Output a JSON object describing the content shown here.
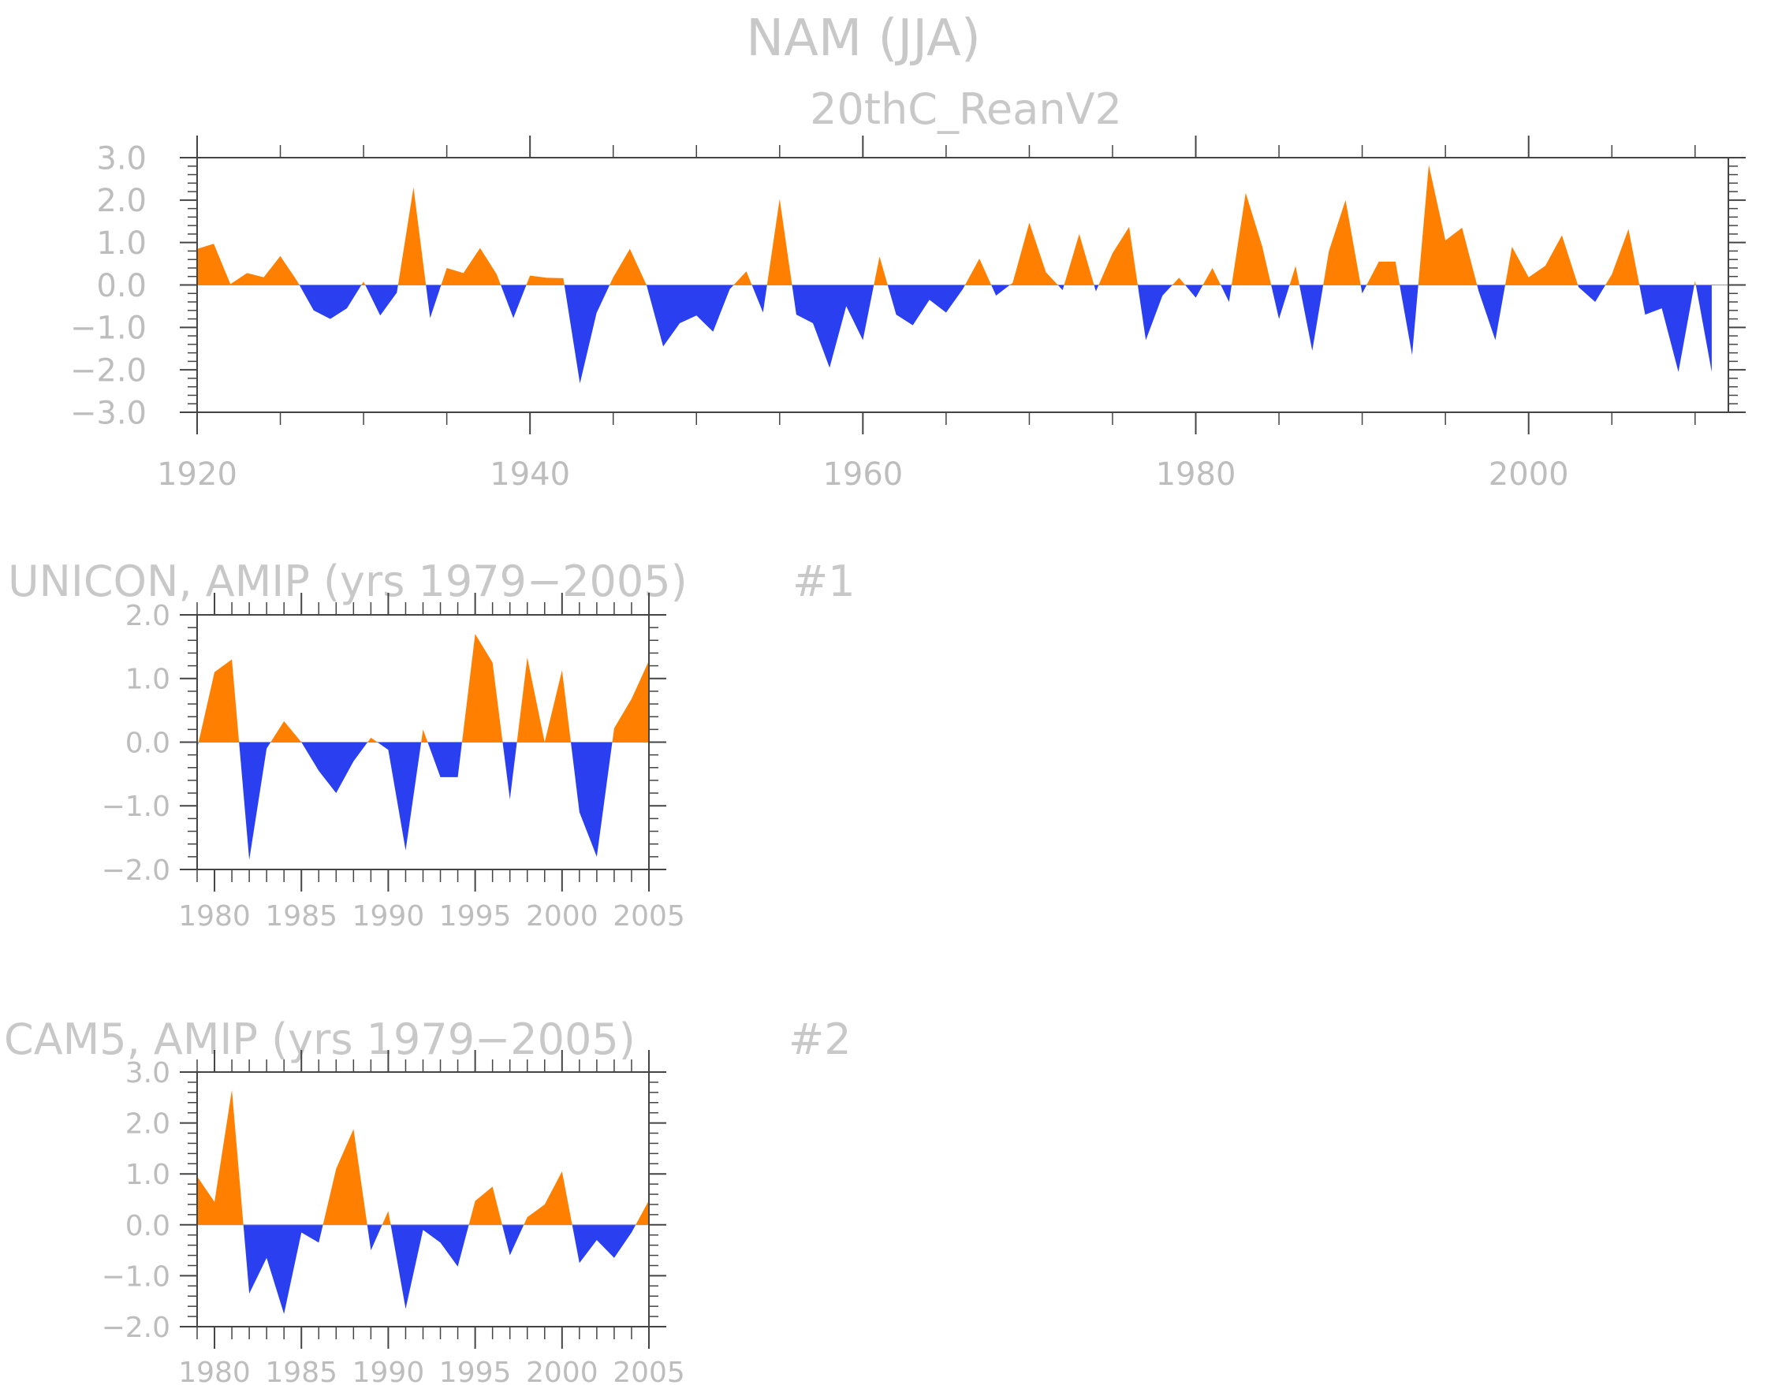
{
  "figure": {
    "title": "NAM (JJA)"
  },
  "chart_data": [
    {
      "type": "area",
      "title": "20thC_ReanV2",
      "tag": "",
      "xlabel": "",
      "ylabel": "",
      "xlim": [
        1920,
        2012
      ],
      "ylim": [
        -3,
        3
      ],
      "x_tick_labels": [
        "1920",
        "1940",
        "1960",
        "1980",
        "2000"
      ],
      "y_tick_labels": [
        "3.0",
        "2.0",
        "1.0",
        "0.0",
        "−1.0",
        "−2.0",
        "−3.0"
      ],
      "colors": {
        "positive": "#ff8000",
        "negative": "#2a3ff0"
      },
      "x": [
        1920,
        1921,
        1922,
        1923,
        1924,
        1925,
        1926,
        1927,
        1928,
        1929,
        1930,
        1931,
        1932,
        1933,
        1934,
        1935,
        1936,
        1937,
        1938,
        1939,
        1940,
        1941,
        1942,
        1943,
        1944,
        1945,
        1946,
        1947,
        1948,
        1949,
        1950,
        1951,
        1952,
        1953,
        1954,
        1955,
        1956,
        1957,
        1958,
        1959,
        1960,
        1961,
        1962,
        1963,
        1964,
        1965,
        1966,
        1967,
        1968,
        1969,
        1970,
        1971,
        1972,
        1973,
        1974,
        1975,
        1976,
        1977,
        1978,
        1979,
        1980,
        1981,
        1982,
        1983,
        1984,
        1985,
        1986,
        1987,
        1988,
        1989,
        1990,
        1991,
        1992,
        1993,
        1994,
        1995,
        1996,
        1997,
        1998,
        1999,
        2000,
        2001,
        2002,
        2003,
        2004,
        2005,
        2006,
        2007,
        2008,
        2009,
        2010,
        2011,
        2012
      ],
      "values": [
        0.85,
        0.97,
        0.02,
        0.28,
        0.18,
        0.68,
        0.1,
        -0.6,
        -0.8,
        -0.55,
        0.08,
        -0.72,
        -0.18,
        2.3,
        -0.78,
        0.4,
        0.28,
        0.87,
        0.25,
        -0.78,
        0.22,
        0.17,
        0.16,
        -2.32,
        -0.66,
        0.18,
        0.85,
        0.0,
        -1.45,
        -0.9,
        -0.72,
        -1.1,
        -0.1,
        0.32,
        -0.65,
        2.03,
        -0.7,
        -0.9,
        -1.95,
        -0.5,
        -1.3,
        0.67,
        -0.7,
        -0.95,
        -0.35,
        -0.65,
        -0.1,
        0.62,
        -0.25,
        0.05,
        1.47,
        0.3,
        -0.12,
        1.2,
        -0.15,
        0.75,
        1.37,
        -1.3,
        -0.25,
        0.17,
        -0.3,
        0.4,
        -0.4,
        2.17,
        0.9,
        -0.8,
        0.45,
        -1.55,
        0.8,
        2.0,
        -0.2,
        0.55,
        0.55,
        -1.65,
        2.83,
        1.05,
        1.35,
        -0.15,
        -1.3,
        0.9,
        0.18,
        0.45,
        1.17,
        -0.05,
        -0.4,
        0.25,
        1.32,
        -0.7,
        -0.55,
        -2.05,
        0.1,
        -2.05,
        null
      ]
    },
    {
      "type": "area",
      "title": "UNICON, AMIP (yrs 1979−2005)",
      "tag": "#1",
      "xlabel": "",
      "ylabel": "",
      "xlim": [
        1979,
        2005
      ],
      "ylim": [
        -2,
        2
      ],
      "x_tick_labels": [
        "1980",
        "1985",
        "1990",
        "1995",
        "2000",
        "2005"
      ],
      "y_tick_labels": [
        "2.0",
        "1.0",
        "0.0",
        "−1.0",
        "−2.0"
      ],
      "colors": {
        "positive": "#ff8000",
        "negative": "#2a3ff0"
      },
      "x": [
        1979,
        1980,
        1981,
        1982,
        1983,
        1984,
        1985,
        1986,
        1987,
        1988,
        1989,
        1990,
        1991,
        1992,
        1993,
        1994,
        1995,
        1996,
        1997,
        1998,
        1999,
        2000,
        2001,
        2002,
        2003,
        2004,
        2005
      ],
      "values": [
        -0.1,
        1.1,
        1.3,
        -1.85,
        -0.1,
        0.33,
        0.0,
        -0.45,
        -0.8,
        -0.3,
        0.07,
        -0.12,
        -1.7,
        0.2,
        -0.55,
        -0.55,
        1.7,
        1.25,
        -0.9,
        1.33,
        0.0,
        1.13,
        -1.1,
        -1.8,
        0.22,
        0.68,
        1.28
      ]
    },
    {
      "type": "area",
      "title": "CAM5, AMIP (yrs 1979−2005)",
      "tag": "#2",
      "xlabel": "",
      "ylabel": "",
      "xlim": [
        1979,
        2005
      ],
      "ylim": [
        -2,
        3
      ],
      "x_tick_labels": [
        "1980",
        "1985",
        "1990",
        "1995",
        "2000",
        "2005"
      ],
      "y_tick_labels": [
        "3.0",
        "2.0",
        "1.0",
        "0.0",
        "−1.0",
        "−2.0"
      ],
      "colors": {
        "positive": "#ff8000",
        "negative": "#2a3ff0"
      },
      "x": [
        1979,
        1980,
        1981,
        1982,
        1983,
        1984,
        1985,
        1986,
        1987,
        1988,
        1989,
        1990,
        1991,
        1992,
        1993,
        1994,
        1995,
        1996,
        1997,
        1998,
        1999,
        2000,
        2001,
        2002,
        2003,
        2004,
        2005
      ],
      "values": [
        0.95,
        0.45,
        2.65,
        -1.35,
        -0.65,
        -1.75,
        -0.15,
        -0.35,
        1.1,
        1.88,
        -0.5,
        0.27,
        -1.65,
        -0.1,
        -0.35,
        -0.82,
        0.47,
        0.75,
        -0.6,
        0.15,
        0.4,
        1.05,
        -0.75,
        -0.3,
        -0.65,
        -0.15,
        0.48
      ]
    }
  ]
}
